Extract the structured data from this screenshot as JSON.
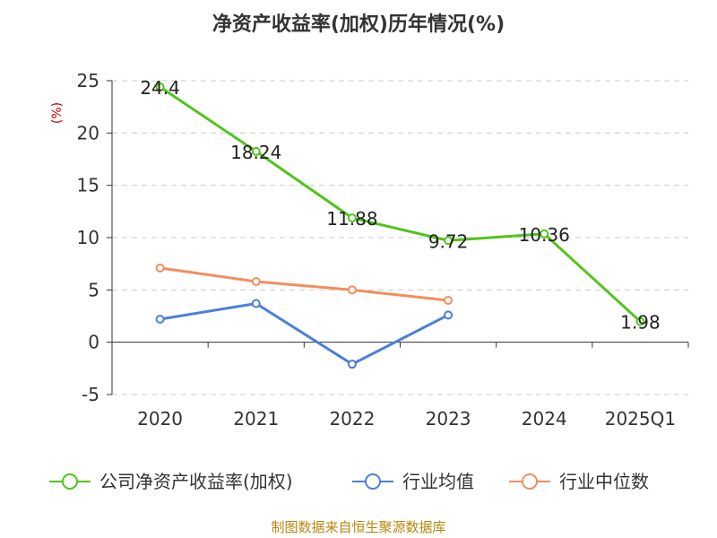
{
  "chart_data": {
    "type": "line",
    "title": "净资产收益率(加权)历年情况(%)",
    "ylabel": "(%)",
    "xlabel": "",
    "categories": [
      "2020",
      "2021",
      "2022",
      "2023",
      "2024",
      "2025Q1"
    ],
    "ylim": [
      -5,
      25
    ],
    "yticks": [
      -5,
      0,
      5,
      10,
      15,
      20,
      25
    ],
    "grid": true,
    "legend_position": "bottom",
    "series": [
      {
        "name": "公司净资产收益率(加权)",
        "color": "#52c41a",
        "values": [
          24.4,
          18.24,
          11.88,
          9.72,
          10.36,
          1.98
        ],
        "labels": [
          "24.4",
          "18.24",
          "11.88",
          "9.72",
          "10.36",
          "1.98"
        ]
      },
      {
        "name": "行业均值",
        "color": "#4a7fdc",
        "values": [
          2.2,
          3.7,
          -2.1,
          2.6,
          null,
          null
        ]
      },
      {
        "name": "行业中位数",
        "color": "#f58d5c",
        "values": [
          7.1,
          5.8,
          5.0,
          4.0,
          null,
          null
        ]
      }
    ]
  },
  "source": "制图数据来自恒生聚源数据库"
}
